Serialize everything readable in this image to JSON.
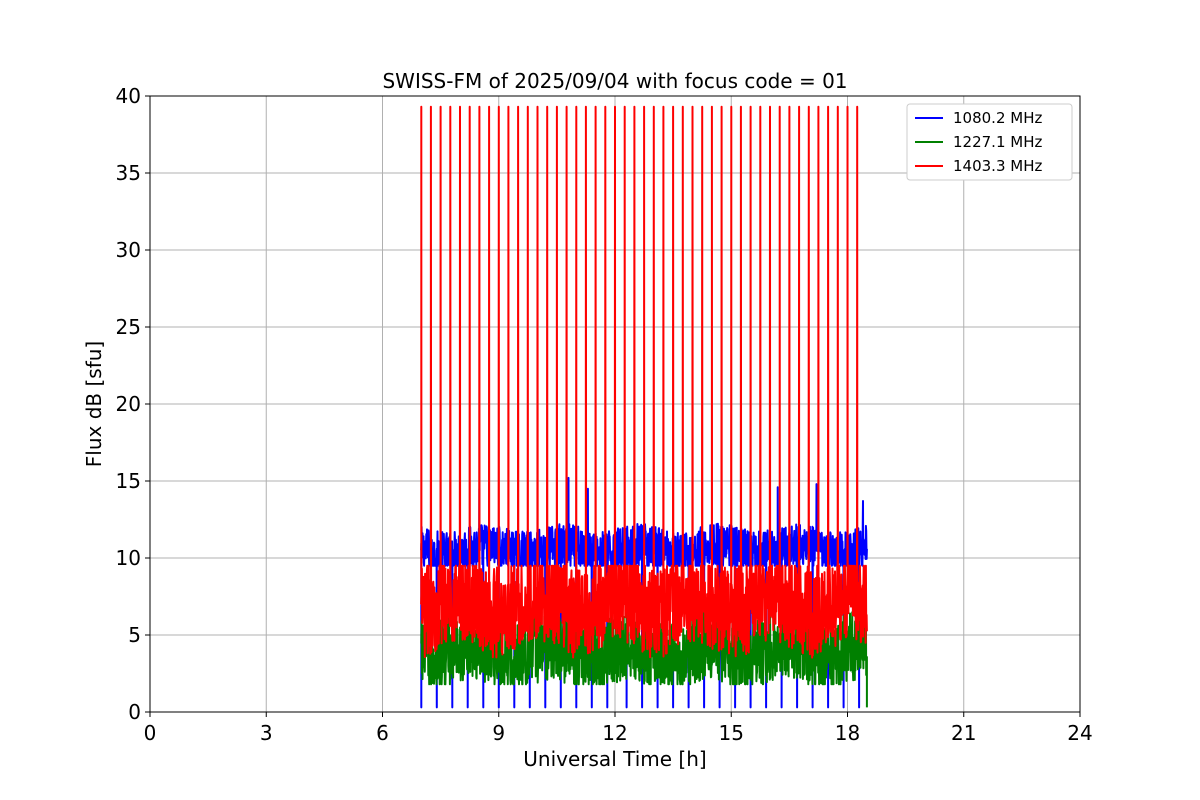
{
  "chart_data": {
    "type": "line",
    "title": "SWISS-FM of 2025/09/04 with focus code = 01",
    "xlabel": "Universal Time [h]",
    "ylabel": "Flux dB [sfu]",
    "xlim": [
      0,
      24
    ],
    "ylim": [
      0,
      40
    ],
    "xticks": [
      0,
      3,
      6,
      9,
      12,
      15,
      18,
      21,
      24
    ],
    "yticks": [
      0,
      5,
      10,
      15,
      20,
      25,
      30,
      35,
      40
    ],
    "grid": true,
    "legend_position": "top-right",
    "time_range": [
      7.0,
      18.5
    ],
    "series": [
      {
        "name": "1080.2 MHz",
        "color": "#0000ff",
        "baseline": 10.5,
        "noise_range": [
          9.5,
          12.5
        ],
        "dips_to": 0.3,
        "dip_times": [
          7.0,
          7.4,
          7.8,
          8.2,
          8.6,
          9.0,
          9.4,
          9.8,
          10.2,
          10.6,
          11.0,
          11.4,
          11.8,
          12.3,
          12.7,
          13.1,
          13.5,
          13.9,
          14.3,
          14.7,
          15.1,
          15.5,
          15.9,
          16.3,
          16.7,
          17.1,
          17.5,
          17.9,
          18.3
        ],
        "bursts": [
          {
            "t": 8.5,
            "y": 14.5
          },
          {
            "t": 10.8,
            "y": 15.2
          },
          {
            "t": 11.3,
            "y": 14.5
          },
          {
            "t": 16.2,
            "y": 14.6
          },
          {
            "t": 17.2,
            "y": 14.8
          },
          {
            "t": 18.4,
            "y": 13.7
          }
        ]
      },
      {
        "name": "1227.1 MHz",
        "color": "#008000",
        "baseline": 4.0,
        "noise_range": [
          1.8,
          6.5
        ],
        "end_value": 0.3
      },
      {
        "name": "1403.3 MHz",
        "color": "#ff0000",
        "baseline": 7.0,
        "noise_range": [
          3.5,
          9.5
        ],
        "spike_peak": 39.3,
        "spike_times": [
          7.0,
          7.25,
          7.5,
          7.75,
          8.0,
          8.25,
          8.5,
          8.75,
          9.0,
          9.25,
          9.5,
          9.75,
          10.0,
          10.25,
          10.5,
          10.75,
          11.0,
          11.25,
          11.5,
          11.75,
          12.0,
          12.25,
          12.5,
          12.75,
          13.0,
          13.25,
          13.5,
          13.75,
          14.0,
          14.25,
          14.5,
          14.75,
          15.0,
          15.25,
          15.5,
          15.75,
          16.0,
          16.25,
          16.5,
          16.75,
          17.0,
          17.25,
          17.5,
          17.75,
          18.0,
          18.25
        ]
      }
    ]
  }
}
